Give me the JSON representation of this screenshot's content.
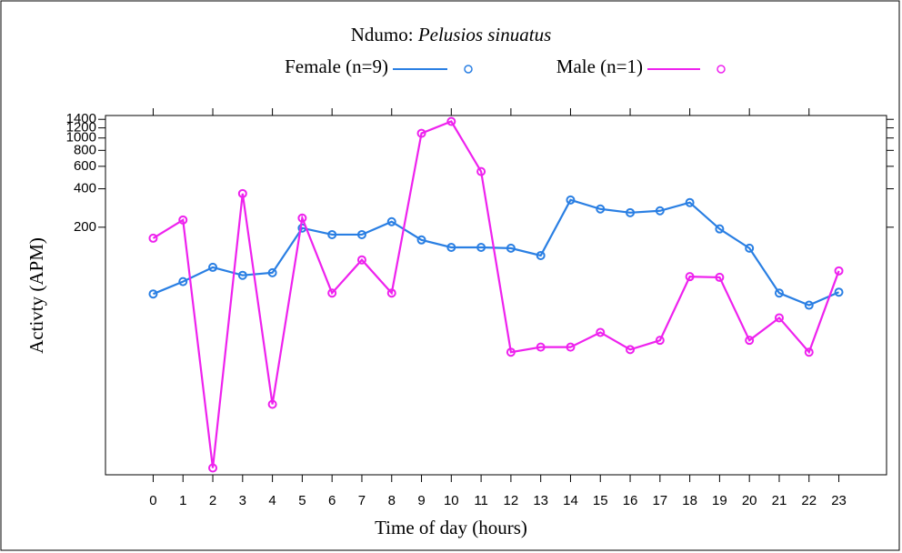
{
  "chart_data": {
    "type": "line",
    "title": "Ndumo:",
    "title_italic": "Pelusios sinuatus",
    "x_label": "Time of day (hours)",
    "y_label": "Activty (APM)",
    "x": [
      0,
      1,
      2,
      3,
      4,
      5,
      6,
      7,
      8,
      9,
      10,
      11,
      12,
      13,
      14,
      15,
      16,
      17,
      18,
      19,
      20,
      21,
      22,
      23
    ],
    "xlim": [
      -1.6,
      24.6
    ],
    "xticks": [
      0,
      1,
      2,
      3,
      4,
      5,
      6,
      7,
      8,
      9,
      10,
      11,
      12,
      13,
      14,
      15,
      16,
      17,
      18,
      19,
      20,
      21,
      22,
      23
    ],
    "ylim": [
      2.3,
      1500
    ],
    "yscale": "log",
    "yticks": [
      200,
      400,
      600,
      800,
      1000,
      1200,
      1400
    ],
    "series": [
      {
        "name": "Female (n=9)",
        "color": "#2a7fe3",
        "values": [
          60,
          75,
          97,
          84,
          88,
          197,
          175,
          175,
          221,
          159,
          139,
          139,
          137,
          120,
          327,
          278,
          260,
          269,
          312,
          194,
          137,
          61,
          49,
          62
        ]
      },
      {
        "name": "Male (n=1)",
        "color": "#ee22ee",
        "values": [
          164,
          228,
          2.6,
          367,
          8.2,
          236,
          61,
          111,
          61,
          1088,
          1348,
          546,
          21,
          23,
          23,
          30,
          22,
          26,
          82,
          81,
          26,
          39,
          21,
          91
        ]
      }
    ]
  }
}
